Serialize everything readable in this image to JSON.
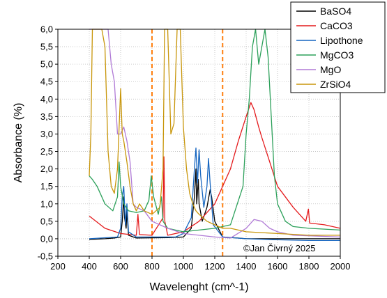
{
  "chart_data": {
    "type": "line",
    "xlabel": "Wavelenght (cm^-1)",
    "ylabel": "Absorbance (%)",
    "xlim": [
      200,
      2000
    ],
    "ylim": [
      -0.5,
      6.0
    ],
    "xticks": [
      200,
      400,
      600,
      800,
      1000,
      1200,
      1400,
      1600,
      1800,
      2000
    ],
    "yticks": [
      -0.5,
      0.0,
      0.5,
      1.0,
      1.5,
      2.0,
      2.5,
      3.0,
      3.5,
      4.0,
      4.5,
      5.0,
      5.5,
      6.0
    ],
    "xtick_labels": [
      "200",
      "400",
      "600",
      "800",
      "1000",
      "1200",
      "1400",
      "1600",
      "1800",
      "2000"
    ],
    "ytick_labels": [
      "-0,5",
      "0,0",
      "0,5",
      "1,0",
      "1,5",
      "2,0",
      "2,5",
      "3,0",
      "3,5",
      "4,0",
      "4,5",
      "5,0",
      "5,5",
      "6,0"
    ],
    "grid": true,
    "legend_position": "top-right",
    "annotation": "©Jan Čivrný 2025",
    "vlines": [
      {
        "x": 800,
        "color": "#ff7f0e",
        "style": "dashed"
      },
      {
        "x": 1250,
        "color": "#ff7f0e",
        "style": "dashed"
      }
    ],
    "series": [
      {
        "name": "BaSO4",
        "color": "#000000",
        "points": [
          [
            400,
            -0.02
          ],
          [
            500,
            0.0
          ],
          [
            560,
            0.02
          ],
          [
            600,
            0.05
          ],
          [
            610,
            0.5
          ],
          [
            620,
            1.2
          ],
          [
            625,
            0.6
          ],
          [
            635,
            0.3
          ],
          [
            640,
            0.8
          ],
          [
            650,
            0.1
          ],
          [
            700,
            0.02
          ],
          [
            900,
            0.03
          ],
          [
            1000,
            0.05
          ],
          [
            1050,
            0.3
          ],
          [
            1070,
            1.2
          ],
          [
            1080,
            2.0
          ],
          [
            1085,
            1.0
          ],
          [
            1095,
            1.7
          ],
          [
            1100,
            1.0
          ],
          [
            1120,
            0.5
          ],
          [
            1150,
            0.9
          ],
          [
            1170,
            1.4
          ],
          [
            1180,
            1.2
          ],
          [
            1200,
            0.5
          ],
          [
            1250,
            0.05
          ],
          [
            1350,
            0.02
          ],
          [
            1400,
            0.0
          ],
          [
            1500,
            0.0
          ],
          [
            2000,
            0.0
          ]
        ]
      },
      {
        "name": "CaCO3",
        "color": "#e41a1c",
        "points": [
          [
            400,
            0.65
          ],
          [
            500,
            0.3
          ],
          [
            600,
            0.15
          ],
          [
            700,
            0.1
          ],
          [
            710,
            0.7
          ],
          [
            720,
            0.12
          ],
          [
            800,
            0.1
          ],
          [
            870,
            0.6
          ],
          [
            876,
            2.35
          ],
          [
            882,
            0.5
          ],
          [
            900,
            0.1
          ],
          [
            1000,
            0.2
          ],
          [
            1100,
            0.5
          ],
          [
            1200,
            1.0
          ],
          [
            1300,
            2.0
          ],
          [
            1350,
            2.8
          ],
          [
            1400,
            3.5
          ],
          [
            1430,
            3.9
          ],
          [
            1450,
            3.7
          ],
          [
            1480,
            3.2
          ],
          [
            1500,
            2.9
          ],
          [
            1550,
            2.2
          ],
          [
            1600,
            1.5
          ],
          [
            1700,
            0.9
          ],
          [
            1780,
            0.5
          ],
          [
            1797,
            0.85
          ],
          [
            1805,
            0.45
          ],
          [
            1900,
            0.4
          ],
          [
            2000,
            0.3
          ]
        ]
      },
      {
        "name": "Lipothone",
        "color": "#1565c0",
        "points": [
          [
            400,
            0.0
          ],
          [
            580,
            0.05
          ],
          [
            600,
            0.3
          ],
          [
            610,
            1.2
          ],
          [
            620,
            1.5
          ],
          [
            630,
            0.4
          ],
          [
            640,
            1.0
          ],
          [
            650,
            0.2
          ],
          [
            700,
            0.05
          ],
          [
            950,
            0.05
          ],
          [
            1000,
            0.15
          ],
          [
            1050,
            0.6
          ],
          [
            1070,
            2.0
          ],
          [
            1080,
            2.6
          ],
          [
            1090,
            1.6
          ],
          [
            1100,
            2.55
          ],
          [
            1110,
            1.8
          ],
          [
            1130,
            0.9
          ],
          [
            1150,
            1.5
          ],
          [
            1160,
            2.3
          ],
          [
            1170,
            1.6
          ],
          [
            1190,
            0.4
          ],
          [
            1250,
            0.05
          ],
          [
            1400,
            0.0
          ],
          [
            1600,
            -0.03
          ],
          [
            1800,
            -0.05
          ],
          [
            2000,
            -0.05
          ]
        ]
      },
      {
        "name": "MgCO3",
        "color": "#2ca05a",
        "points": [
          [
            400,
            1.8
          ],
          [
            420,
            1.7
          ],
          [
            450,
            1.5
          ],
          [
            480,
            1.2
          ],
          [
            500,
            1.0
          ],
          [
            550,
            0.8
          ],
          [
            580,
            1.2
          ],
          [
            590,
            2.2
          ],
          [
            600,
            1.5
          ],
          [
            620,
            1.0
          ],
          [
            650,
            0.8
          ],
          [
            700,
            0.75
          ],
          [
            750,
            0.8
          ],
          [
            780,
            1.1
          ],
          [
            795,
            1.8
          ],
          [
            810,
            1.2
          ],
          [
            840,
            0.7
          ],
          [
            860,
            1.2
          ],
          [
            870,
            0.5
          ],
          [
            900,
            0.3
          ],
          [
            1000,
            0.2
          ],
          [
            1100,
            0.25
          ],
          [
            1200,
            0.3
          ],
          [
            1300,
            0.4
          ],
          [
            1380,
            1.5
          ],
          [
            1400,
            3.0
          ],
          [
            1420,
            4.0
          ],
          [
            1440,
            5.5
          ],
          [
            1460,
            6.0
          ],
          [
            1480,
            5.0
          ],
          [
            1500,
            5.5
          ],
          [
            1520,
            6.0
          ],
          [
            1540,
            5.2
          ],
          [
            1560,
            3.5
          ],
          [
            1580,
            1.8
          ],
          [
            1600,
            1.0
          ],
          [
            1650,
            0.5
          ],
          [
            1700,
            0.35
          ],
          [
            1800,
            0.3
          ],
          [
            2000,
            0.25
          ]
        ]
      },
      {
        "name": "MgO",
        "color": "#b07ad6",
        "points": [
          [
            400,
            6.0
          ],
          [
            420,
            6.0
          ],
          [
            440,
            6.0
          ],
          [
            460,
            6.0
          ],
          [
            480,
            6.0
          ],
          [
            500,
            6.0
          ],
          [
            520,
            6.0
          ],
          [
            540,
            5.0
          ],
          [
            560,
            4.5
          ],
          [
            580,
            3.0
          ],
          [
            600,
            3.0
          ],
          [
            620,
            3.2
          ],
          [
            640,
            2.8
          ],
          [
            660,
            2.2
          ],
          [
            680,
            1.0
          ],
          [
            700,
            0.9
          ],
          [
            750,
            0.8
          ],
          [
            800,
            0.5
          ],
          [
            850,
            0.4
          ],
          [
            900,
            0.3
          ],
          [
            1000,
            0.15
          ],
          [
            1100,
            0.1
          ],
          [
            1200,
            0.05
          ],
          [
            1300,
            0.02
          ],
          [
            1400,
            0.3
          ],
          [
            1450,
            0.55
          ],
          [
            1500,
            0.5
          ],
          [
            1550,
            0.3
          ],
          [
            1600,
            0.2
          ],
          [
            1700,
            0.1
          ],
          [
            2000,
            0.05
          ]
        ]
      },
      {
        "name": "ZrSiO4",
        "color": "#c8960a",
        "points": [
          [
            400,
            1.8
          ],
          [
            410,
            3.0
          ],
          [
            420,
            6.0
          ],
          [
            440,
            6.0
          ],
          [
            460,
            6.0
          ],
          [
            480,
            6.0
          ],
          [
            500,
            5.5
          ],
          [
            520,
            2.5
          ],
          [
            540,
            1.5
          ],
          [
            560,
            1.3
          ],
          [
            580,
            2.0
          ],
          [
            600,
            4.3
          ],
          [
            610,
            3.0
          ],
          [
            620,
            2.8
          ],
          [
            640,
            2.2
          ],
          [
            660,
            1.5
          ],
          [
            680,
            1.0
          ],
          [
            700,
            0.8
          ],
          [
            720,
            1.0
          ],
          [
            750,
            0.8
          ],
          [
            800,
            0.7
          ],
          [
            850,
            0.9
          ],
          [
            870,
            2.0
          ],
          [
            880,
            6.0
          ],
          [
            900,
            6.0
          ],
          [
            920,
            3.0
          ],
          [
            940,
            3.3
          ],
          [
            960,
            6.0
          ],
          [
            980,
            6.0
          ],
          [
            1000,
            3.2
          ],
          [
            1020,
            2.0
          ],
          [
            1040,
            1.3
          ],
          [
            1060,
            1.0
          ],
          [
            1080,
            0.8
          ],
          [
            1100,
            0.7
          ],
          [
            1150,
            0.5
          ],
          [
            1200,
            0.4
          ],
          [
            1250,
            0.3
          ],
          [
            1300,
            0.3
          ],
          [
            1400,
            0.2
          ],
          [
            1600,
            0.15
          ],
          [
            1800,
            0.1
          ],
          [
            2000,
            0.1
          ]
        ]
      }
    ]
  }
}
